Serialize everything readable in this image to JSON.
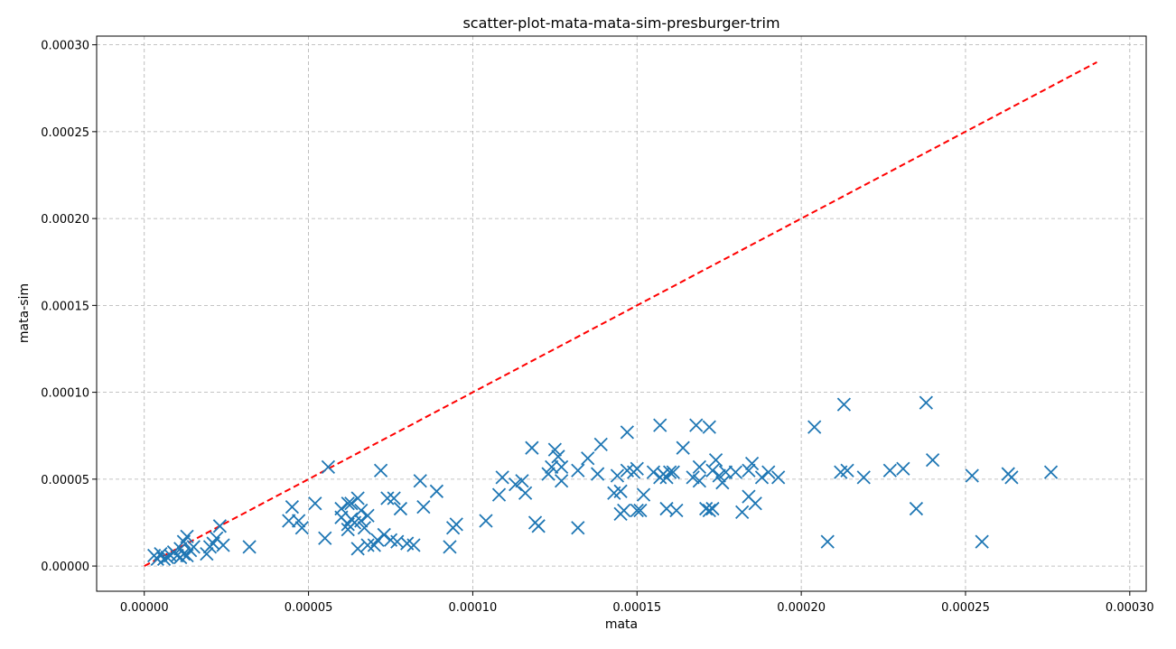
{
  "chart_data": {
    "type": "scatter",
    "title": "scatter-plot-mata-mata-sim-presburger-trim",
    "xlabel": "mata",
    "ylabel": "mata-sim",
    "xlim": [
      -1.45e-05,
      0.000305
    ],
    "ylim": [
      -1.45e-05,
      0.000305
    ],
    "xticks": [
      "0.00000",
      "0.00005",
      "0.00010",
      "0.00015",
      "0.00020",
      "0.00025",
      "0.00030"
    ],
    "yticks": [
      "0.00000",
      "0.00005",
      "0.00010",
      "0.00015",
      "0.00020",
      "0.00025",
      "0.00030"
    ],
    "grid": true,
    "marker": "x",
    "colors": {
      "points": "#1f77b4",
      "reference": "#ff0000",
      "grid": "#b0b0b0"
    },
    "reference_line": {
      "x": [
        0,
        0.00029
      ],
      "y": [
        0,
        0.00029
      ],
      "style": "dashed"
    },
    "points": [
      [
        3e-06,
        6e-06
      ],
      [
        4e-06,
        4e-06
      ],
      [
        5e-06,
        7e-06
      ],
      [
        6e-06,
        4e-06
      ],
      [
        7e-06,
        5e-06
      ],
      [
        8e-06,
        6e-06
      ],
      [
        9e-06,
        8e-06
      ],
      [
        1e-05,
        6e-06
      ],
      [
        1.1e-05,
        1e-05
      ],
      [
        1.2e-05,
        7e-06
      ],
      [
        1.2e-05,
        1.4e-05
      ],
      [
        1.3e-05,
        1.7e-05
      ],
      [
        1.4e-05,
        9e-06
      ],
      [
        1.5e-05,
        1.1e-05
      ],
      [
        1.3e-05,
        6e-06
      ],
      [
        1.1e-05,
        5e-06
      ],
      [
        1.9e-05,
        7e-06
      ],
      [
        2e-05,
        1.1e-05
      ],
      [
        2.1e-05,
        1.3e-05
      ],
      [
        2.2e-05,
        1.6e-05
      ],
      [
        2.3e-05,
        2.3e-05
      ],
      [
        2.4e-05,
        1.2e-05
      ],
      [
        3.2e-05,
        1.1e-05
      ],
      [
        4.4e-05,
        2.6e-05
      ],
      [
        4.5e-05,
        3.4e-05
      ],
      [
        4.7e-05,
        2.6e-05
      ],
      [
        4.8e-05,
        2.2e-05
      ],
      [
        5.2e-05,
        3.6e-05
      ],
      [
        5.5e-05,
        1.6e-05
      ],
      [
        5.6e-05,
        5.7e-05
      ],
      [
        6e-05,
        2.8e-05
      ],
      [
        6e-05,
        3.3e-05
      ],
      [
        6.2e-05,
        3.6e-05
      ],
      [
        6.2e-05,
        2.4e-05
      ],
      [
        6.2e-05,
        2.1e-05
      ],
      [
        6.3e-05,
        3.6e-05
      ],
      [
        6.3e-05,
        2.7e-05
      ],
      [
        6.4e-05,
        2.5e-05
      ],
      [
        6.5e-05,
        3.9e-05
      ],
      [
        6.5e-05,
        1e-05
      ],
      [
        6.6e-05,
        3.2e-05
      ],
      [
        6.6e-05,
        2.6e-05
      ],
      [
        6.7e-05,
        2.2e-05
      ],
      [
        6.8e-05,
        2.9e-05
      ],
      [
        6.8e-05,
        1.2e-05
      ],
      [
        7e-05,
        1.2e-05
      ],
      [
        7.1e-05,
        1.5e-05
      ],
      [
        7.2e-05,
        5.5e-05
      ],
      [
        7.3e-05,
        1.8e-05
      ],
      [
        7.4e-05,
        3.9e-05
      ],
      [
        7.5e-05,
        1.5e-05
      ],
      [
        7.6e-05,
        3.9e-05
      ],
      [
        7.7e-05,
        1.4e-05
      ],
      [
        7.8e-05,
        3.3e-05
      ],
      [
        8e-05,
        1.3e-05
      ],
      [
        8.2e-05,
        1.2e-05
      ],
      [
        8.4e-05,
        4.9e-05
      ],
      [
        8.5e-05,
        3.4e-05
      ],
      [
        8.9e-05,
        4.3e-05
      ],
      [
        9.3e-05,
        1.1e-05
      ],
      [
        9.4e-05,
        2.2e-05
      ],
      [
        9.5e-05,
        2.4e-05
      ],
      [
        0.000104,
        2.6e-05
      ],
      [
        0.000108,
        4.1e-05
      ],
      [
        0.000109,
        5.1e-05
      ],
      [
        0.000113,
        4.7e-05
      ],
      [
        0.000115,
        4.9e-05
      ],
      [
        0.000116,
        4.2e-05
      ],
      [
        0.000118,
        6.8e-05
      ],
      [
        0.000119,
        2.5e-05
      ],
      [
        0.00012,
        2.3e-05
      ],
      [
        0.000123,
        5.3e-05
      ],
      [
        0.000124,
        5.7e-05
      ],
      [
        0.000125,
        6.7e-05
      ],
      [
        0.000126,
        6.3e-05
      ],
      [
        0.000127,
        4.9e-05
      ],
      [
        0.000127,
        5.7e-05
      ],
      [
        0.000132,
        2.2e-05
      ],
      [
        0.000132,
        5.5e-05
      ],
      [
        0.000135,
        6.2e-05
      ],
      [
        0.000138,
        5.3e-05
      ],
      [
        0.000139,
        7e-05
      ],
      [
        0.000143,
        4.2e-05
      ],
      [
        0.000144,
        5.2e-05
      ],
      [
        0.000145,
        4.3e-05
      ],
      [
        0.000145,
        3e-05
      ],
      [
        0.000146,
        3.2e-05
      ],
      [
        0.000147,
        7.7e-05
      ],
      [
        0.000147,
        5.5e-05
      ],
      [
        0.000149,
        5.4e-05
      ],
      [
        0.00015,
        5.6e-05
      ],
      [
        0.00015,
        3.2e-05
      ],
      [
        0.000151,
        3.2e-05
      ],
      [
        0.000152,
        4.1e-05
      ],
      [
        0.000155,
        5.4e-05
      ],
      [
        0.000157,
        8.1e-05
      ],
      [
        0.000157,
        5.1e-05
      ],
      [
        0.000158,
        5.3e-05
      ],
      [
        0.000159,
        5.1e-05
      ],
      [
        0.000159,
        3.3e-05
      ],
      [
        0.00016,
        5.4e-05
      ],
      [
        0.000161,
        5.4e-05
      ],
      [
        0.000162,
        3.2e-05
      ],
      [
        0.000164,
        6.8e-05
      ],
      [
        0.000167,
        5.1e-05
      ],
      [
        0.000168,
        8.1e-05
      ],
      [
        0.000169,
        5.7e-05
      ],
      [
        0.000169,
        4.9e-05
      ],
      [
        0.000171,
        3.3e-05
      ],
      [
        0.000172,
        8e-05
      ],
      [
        0.000172,
        3.2e-05
      ],
      [
        0.000173,
        5.5e-05
      ],
      [
        0.000173,
        3.3e-05
      ],
      [
        0.000174,
        6.1e-05
      ],
      [
        0.000175,
        5.2e-05
      ],
      [
        0.000176,
        4.8e-05
      ],
      [
        0.000177,
        5.4e-05
      ],
      [
        0.00018,
        5.4e-05
      ],
      [
        0.000182,
        3.1e-05
      ],
      [
        0.000184,
        4e-05
      ],
      [
        0.000184,
        5.5e-05
      ],
      [
        0.000185,
        5.9e-05
      ],
      [
        0.000186,
        3.6e-05
      ],
      [
        0.000188,
        5.1e-05
      ],
      [
        0.00019,
        5.4e-05
      ],
      [
        0.000193,
        5.1e-05
      ],
      [
        0.000204,
        8e-05
      ],
      [
        0.000208,
        1.4e-05
      ],
      [
        0.000212,
        5.4e-05
      ],
      [
        0.000213,
        9.3e-05
      ],
      [
        0.000214,
        5.5e-05
      ],
      [
        0.000219,
        5.1e-05
      ],
      [
        0.000227,
        5.5e-05
      ],
      [
        0.000231,
        5.6e-05
      ],
      [
        0.000235,
        3.3e-05
      ],
      [
        0.000238,
        9.4e-05
      ],
      [
        0.00024,
        6.1e-05
      ],
      [
        0.000252,
        5.2e-05
      ],
      [
        0.000255,
        1.4e-05
      ],
      [
        0.000263,
        5.3e-05
      ],
      [
        0.000264,
        5.1e-05
      ],
      [
        0.000276,
        5.4e-05
      ]
    ]
  }
}
